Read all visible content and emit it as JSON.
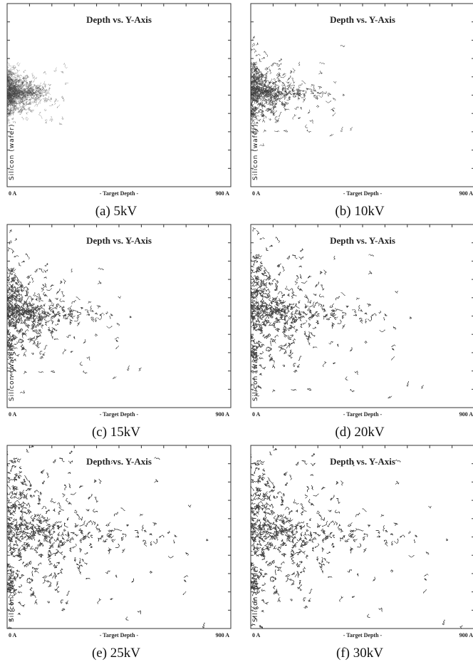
{
  "panels": [
    {
      "title": "Depth vs. Y-Axis",
      "x_start": "0 A",
      "x_label": "- Target Depth -",
      "x_end": "900 A",
      "side_label": "Silicon (wafer)",
      "caption": "(a) 5kV"
    },
    {
      "title": "Depth vs. Y-Axis",
      "x_start": "0 A",
      "x_label": "- Target Depth -",
      "x_end": "900 A",
      "side_label": "Silicon (wafer)",
      "caption": "(b) 10kV"
    },
    {
      "title": "Depth vs. Y-Axis",
      "x_start": "0 A",
      "x_label": "- Target Depth -",
      "x_end": "900 A",
      "side_label": "Silicon (wafer)",
      "caption": "(c) 15kV"
    },
    {
      "title": "Depth vs. Y-Axis",
      "x_start": "0 A",
      "x_label": "- Target Depth -",
      "x_end": "900 A",
      "side_label": "Silicon (wafer)",
      "caption": "(d) 20kV"
    },
    {
      "title": "Depth vs. Y-Axis",
      "x_start": "0 A",
      "x_label": "- Target Depth -",
      "x_end": "900 A",
      "side_label": "Silicon (wafer)",
      "caption": "(e) 25kV"
    },
    {
      "title": "Depth vs. Y-Axis",
      "x_start": "0 A",
      "x_label": "- Target Depth -",
      "x_end": "900 A",
      "side_label": "Silicon (wafer)",
      "caption": "(f) 30kV"
    }
  ]
}
